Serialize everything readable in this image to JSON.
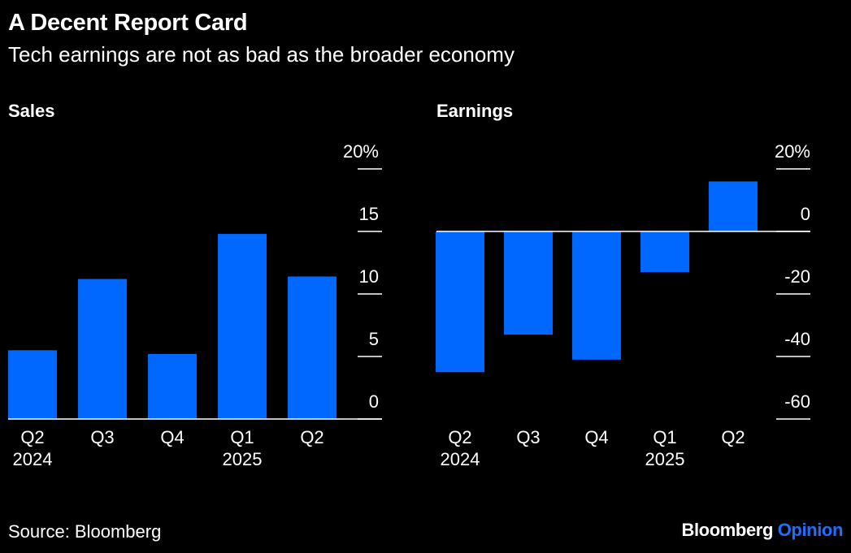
{
  "header": {
    "title": "A Decent Report Card",
    "subtitle": "Tech earnings are not as bad as the broader economy"
  },
  "footer": {
    "source": "Source: Bloomberg",
    "brand_main": "Bloomberg",
    "brand_accent": "Opinion"
  },
  "colors": {
    "background": "#000000",
    "bar": "#0068ff",
    "text": "#ffffff",
    "brand_accent": "#1f6fff"
  },
  "chart_data": [
    {
      "type": "bar",
      "title": "Sales",
      "categories": [
        [
          "Q2",
          "2024"
        ],
        [
          "Q3",
          ""
        ],
        [
          "Q4",
          ""
        ],
        [
          "Q1",
          "2025"
        ],
        [
          "Q2",
          ""
        ]
      ],
      "values": [
        5.5,
        11.2,
        5.2,
        14.8,
        11.4
      ],
      "ylim": [
        0,
        20
      ],
      "yticks": [
        0,
        5,
        10,
        15,
        20
      ],
      "ytick_labels": [
        "0",
        "5",
        "10",
        "15",
        "20%"
      ],
      "axis_side": "right",
      "grid": false
    },
    {
      "type": "bar",
      "title": "Earnings",
      "categories": [
        [
          "Q2",
          "2024"
        ],
        [
          "Q3",
          ""
        ],
        [
          "Q4",
          ""
        ],
        [
          "Q1",
          "2025"
        ],
        [
          "Q2",
          ""
        ]
      ],
      "values": [
        -45,
        -33,
        -41,
        -13,
        16
      ],
      "ylim": [
        -60,
        20
      ],
      "yticks": [
        -60,
        -40,
        -20,
        0,
        20
      ],
      "ytick_labels": [
        "-60",
        "-40",
        "-20",
        "0",
        "20%"
      ],
      "axis_side": "right",
      "grid": false
    }
  ]
}
